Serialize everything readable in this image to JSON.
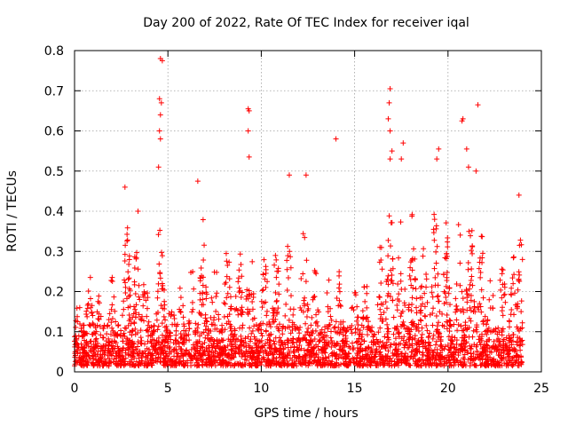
{
  "chart_data": {
    "type": "scatter",
    "title": "Day 200 of 2022, Rate Of TEC Index for receiver iqal",
    "xlabel": "GPS time / hours",
    "ylabel": "ROTI / TECUs",
    "xlim": [
      0,
      25
    ],
    "ylim": [
      0,
      0.8
    ],
    "x_ticks": [
      0,
      5,
      10,
      15,
      20,
      25
    ],
    "y_ticks": [
      0,
      0.1,
      0.2,
      0.3,
      0.4,
      0.5,
      0.6,
      0.7,
      0.8
    ],
    "x_tick_labels": [
      "0",
      "5",
      "10",
      "15",
      "20",
      "25"
    ],
    "y_tick_labels": [
      "0",
      "0.1",
      "0.2",
      "0.3",
      "0.4",
      "0.5",
      "0.6",
      "0.7",
      "0.8"
    ],
    "grid": true,
    "legend": "none",
    "marker": "plus",
    "marker_color": "#ff0000",
    "data_range_x": [
      0,
      24
    ],
    "outliers": [
      [
        4.6,
        0.78
      ],
      [
        4.7,
        0.775
      ],
      [
        4.55,
        0.68
      ],
      [
        4.65,
        0.67
      ],
      [
        4.6,
        0.64
      ],
      [
        4.55,
        0.6
      ],
      [
        4.6,
        0.58
      ],
      [
        4.5,
        0.51
      ],
      [
        9.3,
        0.655
      ],
      [
        9.35,
        0.65
      ],
      [
        9.3,
        0.6
      ],
      [
        9.35,
        0.535
      ],
      [
        14.0,
        0.58
      ],
      [
        16.9,
        0.705
      ],
      [
        16.85,
        0.67
      ],
      [
        16.8,
        0.63
      ],
      [
        16.9,
        0.6
      ],
      [
        17.0,
        0.55
      ],
      [
        16.9,
        0.53
      ],
      [
        17.6,
        0.57
      ],
      [
        17.5,
        0.53
      ],
      [
        19.5,
        0.555
      ],
      [
        19.4,
        0.53
      ],
      [
        20.8,
        0.63
      ],
      [
        20.75,
        0.625
      ],
      [
        21.0,
        0.555
      ],
      [
        21.1,
        0.51
      ],
      [
        21.6,
        0.665
      ],
      [
        21.5,
        0.5
      ],
      [
        6.6,
        0.475
      ],
      [
        11.5,
        0.49
      ],
      [
        12.4,
        0.49
      ],
      [
        23.8,
        0.44
      ],
      [
        3.4,
        0.4
      ],
      [
        2.7,
        0.46
      ]
    ]
  }
}
